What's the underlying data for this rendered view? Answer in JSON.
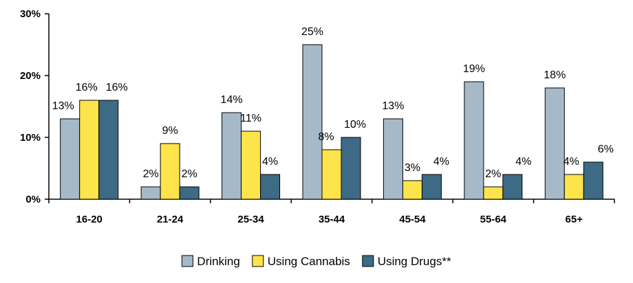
{
  "chart_data": {
    "type": "bar",
    "categories": [
      "16-20",
      "21-24",
      "25-34",
      "35-44",
      "45-54",
      "55-64",
      "65+"
    ],
    "series": [
      {
        "name": "Drinking",
        "color": "#a6b9c8",
        "values": [
          13,
          2,
          14,
          25,
          13,
          19,
          18
        ],
        "labels": [
          "13%",
          "2%",
          "14%",
          "25%",
          "13%",
          "19%",
          "18%"
        ]
      },
      {
        "name": "Using Cannabis",
        "color": "#fde44b",
        "values": [
          16,
          9,
          11,
          8,
          3,
          2,
          4
        ],
        "labels": [
          "16%",
          "9%",
          "11%",
          "8%",
          "3%",
          "2%",
          "4%"
        ]
      },
      {
        "name": "Using Drugs**",
        "color": "#3d6a84",
        "values": [
          16,
          2,
          4,
          10,
          4,
          4,
          6
        ],
        "labels": [
          "16%",
          "2%",
          "4%",
          "10%",
          "4%",
          "4%",
          "6%"
        ]
      }
    ],
    "ylim": [
      0,
      30
    ],
    "yticks": [
      0,
      10,
      20,
      30
    ],
    "ytick_labels": [
      "0%",
      "10%",
      "20%",
      "30%"
    ],
    "grid": false,
    "legend_position": "bottom"
  }
}
